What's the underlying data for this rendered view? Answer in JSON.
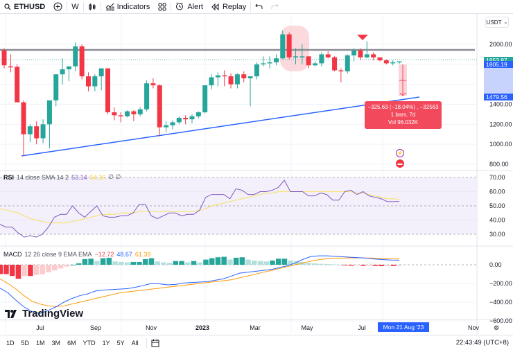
{
  "toolbar": {
    "symbol": "ETHUSD",
    "interval": "W",
    "indicators_label": "Indicators",
    "alert_label": "Alert",
    "replay_label": "Replay",
    "icons": [
      "search-icon",
      "add-symbol-icon",
      "candles-icon",
      "indicators-icon",
      "layout-grid-icon",
      "alert-icon",
      "replay-icon",
      "undo-icon",
      "redo-icon"
    ]
  },
  "price_axis": {
    "currency": "USDT",
    "ticks": [
      "2000.00",
      "1800.00",
      "1600.00",
      "1400.00",
      "1200.00",
      "1000.00",
      "800.00"
    ],
    "tags": [
      {
        "label": "1853.87",
        "color": "#26a69a"
      },
      {
        "label": "1805.19",
        "color": "#2962ff"
      },
      {
        "label": "1479.56",
        "color": "#2962ff"
      }
    ]
  },
  "measure": {
    "line1": "−325.63 (−18.04%) , −32563",
    "line2": "1 bars, 7d",
    "line3": "Vol 96.032K",
    "color": "#f2495c"
  },
  "rsi": {
    "title": "RSI",
    "params": "14 close SMA 14 2",
    "value": "53.14",
    "sma_value": "54.36",
    "extra": "∅ ∅",
    "ticks": [
      "70.00",
      "60.00",
      "50.00",
      "40.00",
      "30.00"
    ],
    "line_color": "#7e57c2",
    "sma_color": "#f5e27a"
  },
  "macd": {
    "title": "MACD",
    "params": "12 26 close 9 EMA EMA",
    "hist": "−12.72",
    "macd": "48.67",
    "signal": "61.39",
    "ticks": [
      "0.00",
      "−200.00",
      "−400.00",
      "−600.00"
    ],
    "macd_color": "#2962ff",
    "signal_color": "#ff9800"
  },
  "time_axis": {
    "labels": [
      "Jul",
      "Sep",
      "Nov",
      "2023",
      "Mar",
      "May",
      "Jul",
      "Nov"
    ],
    "crosshair_date": "Mon 21 Aug '23"
  },
  "brand": "TradingView",
  "bottombar": {
    "ranges": [
      "1D",
      "5D",
      "1M",
      "3M",
      "6M",
      "YTD",
      "1Y",
      "5Y",
      "All"
    ],
    "clock": "22:43:49 (UTC+8)"
  },
  "colors": {
    "up": "#26a69a",
    "down": "#f23645"
  },
  "chart_data": {
    "type": "candlestick",
    "title": "ETHUSD · W",
    "ylabel": "USDT",
    "ylim": [
      750,
      2150
    ],
    "x": [
      "2022-06",
      "2022-07",
      "2022-08",
      "2022-09",
      "2022-10",
      "2022-11",
      "2022-12",
      "2023-01",
      "2023-02",
      "2023-03",
      "2023-04",
      "2023-05",
      "2023-06",
      "2023-07",
      "2023-08"
    ],
    "ohlc": [
      [
        1940,
        1960,
        1760,
        1790
      ],
      [
        1780,
        1900,
        1720,
        1775
      ],
      [
        1775,
        1800,
        1420,
        1420
      ],
      [
        1420,
        1440,
        880,
        1100
      ],
      [
        1100,
        1200,
        1020,
        1180
      ],
      [
        1180,
        1230,
        1000,
        1060
      ],
      [
        1060,
        1250,
        1010,
        1200
      ],
      [
        1200,
        1300,
        960,
        1440
      ],
      [
        1440,
        1700,
        1380,
        1700
      ],
      [
        1700,
        1860,
        1600,
        1750
      ],
      [
        1750,
        1780,
        1630,
        1780
      ],
      [
        1780,
        2020,
        1730,
        1980
      ],
      [
        1980,
        2000,
        1650,
        1680
      ],
      [
        1680,
        1720,
        1530,
        1580
      ],
      [
        1580,
        1700,
        1530,
        1680
      ],
      [
        1680,
        1760,
        1540,
        1760
      ],
      [
        1760,
        1760,
        1300,
        1320
      ],
      [
        1320,
        1370,
        1240,
        1290
      ],
      [
        1290,
        1320,
        1220,
        1280
      ],
      [
        1280,
        1340,
        1270,
        1330
      ],
      [
        1330,
        1340,
        1230,
        1300
      ],
      [
        1300,
        1370,
        1280,
        1350
      ],
      [
        1350,
        1640,
        1330,
        1610
      ],
      [
        1610,
        1660,
        1560,
        1590
      ],
      [
        1590,
        1600,
        1080,
        1170
      ],
      [
        1170,
        1230,
        1120,
        1190
      ],
      [
        1190,
        1240,
        1150,
        1220
      ],
      [
        1220,
        1280,
        1200,
        1265
      ],
      [
        1265,
        1290,
        1200,
        1250
      ],
      [
        1250,
        1300,
        1210,
        1280
      ],
      [
        1280,
        1330,
        1260,
        1320
      ],
      [
        1320,
        1590,
        1310,
        1590
      ],
      [
        1590,
        1700,
        1550,
        1670
      ],
      [
        1670,
        1720,
        1580,
        1690
      ],
      [
        1690,
        1740,
        1580,
        1680
      ],
      [
        1680,
        1710,
        1560,
        1600
      ],
      [
        1600,
        1710,
        1560,
        1700
      ],
      [
        1700,
        1730,
        1620,
        1660
      ],
      [
        1660,
        1680,
        1380,
        1680
      ],
      [
        1680,
        1820,
        1650,
        1800
      ],
      [
        1800,
        1880,
        1780,
        1810
      ],
      [
        1810,
        1880,
        1760,
        1820
      ],
      [
        1820,
        1900,
        1790,
        1860
      ],
      [
        1860,
        2140,
        1850,
        2100
      ],
      [
        2100,
        2120,
        1850,
        1870
      ],
      [
        1870,
        1960,
        1800,
        1880
      ],
      [
        1880,
        2000,
        1800,
        1880
      ],
      [
        1880,
        1880,
        1760,
        1790
      ],
      [
        1790,
        1830,
        1780,
        1810
      ],
      [
        1810,
        1920,
        1780,
        1900
      ],
      [
        1900,
        1930,
        1860,
        1870
      ],
      [
        1870,
        1880,
        1730,
        1740
      ],
      [
        1740,
        1760,
        1620,
        1730
      ],
      [
        1730,
        1900,
        1710,
        1890
      ],
      [
        1890,
        1960,
        1830,
        1940
      ],
      [
        1940,
        1960,
        1840,
        1870
      ],
      [
        1870,
        2030,
        1860,
        1900
      ],
      [
        1900,
        1920,
        1840,
        1870
      ],
      [
        1870,
        1870,
        1830,
        1840
      ],
      [
        1840,
        1850,
        1800,
        1810
      ],
      [
        1810,
        1840,
        1790,
        1820
      ],
      [
        1820,
        1830,
        1805,
        1830
      ]
    ],
    "annotations": [
      "Horizontal resistance ≈1950",
      "Ascending trendline from ≈880 (Jun 2022) to ≈1479.56 (Aug 2023)",
      "Highlighted double-top near 2100 (Apr 2023)",
      "Red down marker near Jul 2023",
      "Measure: −325.63 (−18.04%)"
    ],
    "rsi": {
      "ylim": [
        25,
        72
      ],
      "bands": [
        30,
        50,
        70
      ],
      "last": 53.14,
      "sma_last": 54.36
    },
    "macd": {
      "ylim": [
        -620,
        80
      ],
      "last_hist": -12.72,
      "last_macd": 48.67,
      "last_signal": 61.39
    }
  }
}
